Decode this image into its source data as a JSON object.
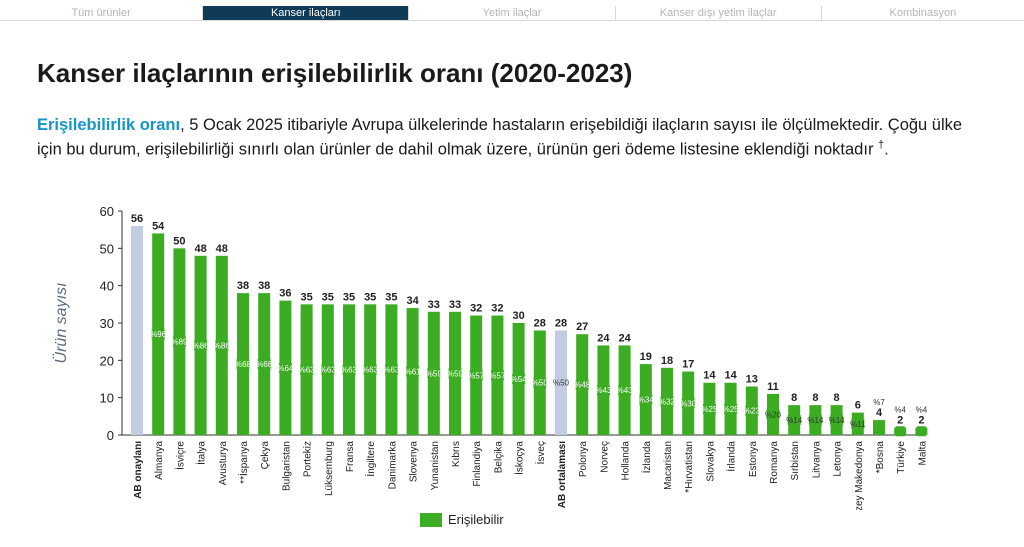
{
  "tabs": [
    {
      "label": "Tüm ürünler",
      "active": false
    },
    {
      "label": "Kanser ilaçları",
      "active": true
    },
    {
      "label": "Yetim ilaçlar",
      "active": false
    },
    {
      "label": "Kanser dışı yetim ilaçlar",
      "active": false
    },
    {
      "label": "Kombinasyon",
      "active": false
    }
  ],
  "title": "Kanser ilaçlarının erişilebilirlik oranı (2020-2023)",
  "description": {
    "lead": "Erişilebilirlik oranı",
    "text": ", 5 Ocak 2025 itibariyle Avrupa ülkelerinde hastaların erişebildiği ilaçların sayısı ile ölçülmektedir. Çoğu ülke için bu durum, erişilebilirliği sınırlı olan ürünler de dahil olmak üzere, ürünün geri ödeme listesine eklendiği noktadır",
    "sup": "†",
    "end": "."
  },
  "chart_data": {
    "type": "bar",
    "ylabel": "Ürün sayısı",
    "ylim": [
      0,
      60
    ],
    "yticks": [
      0,
      10,
      20,
      30,
      40,
      50,
      60
    ],
    "colors": {
      "available": "#3cac23",
      "reference": "#c2cce0",
      "axis": "#333333",
      "ylabel": "#5a6b7d"
    },
    "categories": [
      "AB onaylanı",
      "Almanya",
      "İsviçre",
      "İtalya",
      "Avusturya",
      "**İspanya",
      "Çekya",
      "Bulgaristan",
      "Portekiz",
      "Lüksemburg",
      "Fransa",
      "İngiltere",
      "Danimarka",
      "Slovenya",
      "Yunanistan",
      "Kıbrıs",
      "Finlandiya",
      "Belçika",
      "İskoçya",
      "İsveç",
      "AB ortalaması",
      "Polonya",
      "Norveç",
      "Hollanda",
      "İzlanda",
      "Macaristan",
      "*Hırvatistan",
      "Slovakya",
      "İrlanda",
      "Estonya",
      "Romanya",
      "Sırbistan",
      "Litvanya",
      "Letonya",
      "*Kuzey Makedonya",
      "*Bosna",
      "Türkiye",
      "Malta"
    ],
    "values": [
      56,
      54,
      50,
      48,
      48,
      38,
      38,
      36,
      35,
      35,
      35,
      35,
      35,
      34,
      33,
      33,
      32,
      32,
      30,
      28,
      28,
      27,
      24,
      24,
      19,
      18,
      17,
      14,
      14,
      13,
      11,
      8,
      8,
      8,
      6,
      4,
      2,
      2
    ],
    "percent_labels": [
      "",
      "%96",
      "%89",
      "%86",
      "%86",
      "%68",
      "%68",
      "%64",
      "%63",
      "%63",
      "%63",
      "%63",
      "%63",
      "%61",
      "%59",
      "%59",
      "%57",
      "%57",
      "%54",
      "%50",
      "%50",
      "%48",
      "%43",
      "%43",
      "%34",
      "%32",
      "%30",
      "%25",
      "%25",
      "%23",
      "%20",
      "%14",
      "%14",
      "%14",
      "%11",
      "%7",
      "%4",
      "%4"
    ],
    "reference_categories": [
      "AB onaylanı",
      "AB ortalaması"
    ],
    "bold_categories": [
      "AB onaylanı",
      "AB ortalaması"
    ],
    "legend": [
      {
        "label": "Erişilebilir",
        "color": "#3cac23"
      }
    ]
  }
}
